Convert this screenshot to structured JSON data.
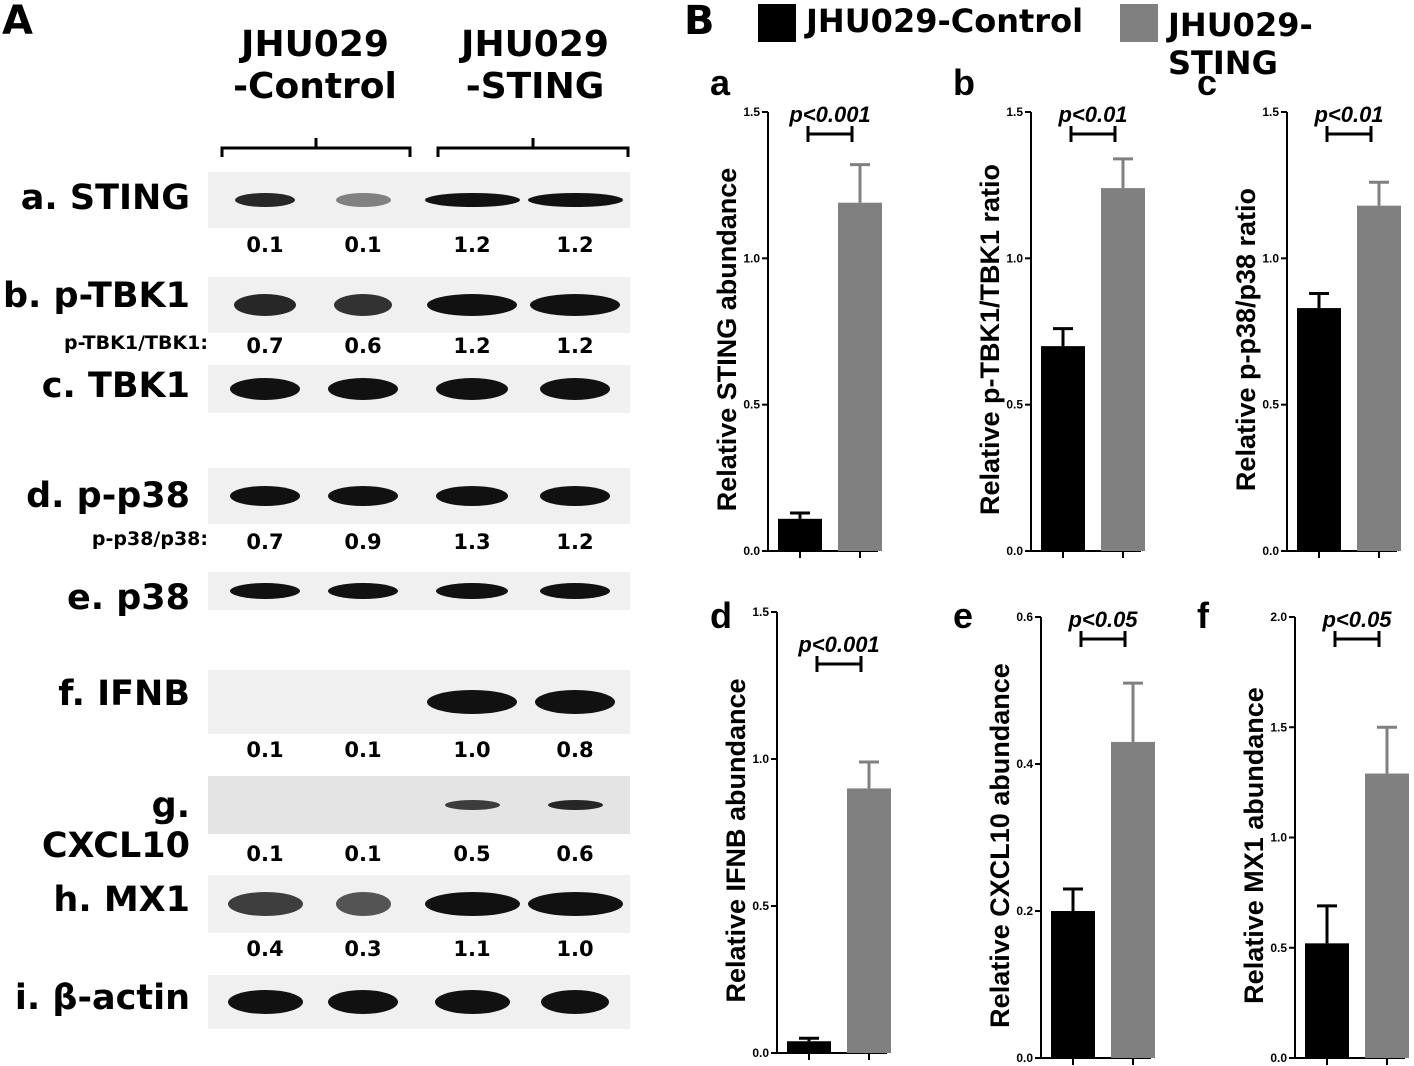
{
  "panelA": {
    "letter": "A",
    "groups": [
      "JHU029\n-Control",
      "JHU029\n-STING"
    ],
    "rows": [
      {
        "label": "a. STING",
        "values": [
          "0.1",
          "0.1",
          "1.2",
          "1.2"
        ],
        "ratio_label": ""
      },
      {
        "label": "b. p-TBK1",
        "values": [
          "0.7",
          "0.6",
          "1.2",
          "1.2"
        ],
        "ratio_label": "p-TBK1/TBK1:"
      },
      {
        "label": "c. TBK1",
        "values": [],
        "ratio_label": ""
      },
      {
        "label": "d. p-p38",
        "values": [
          "0.7",
          "0.9",
          "1.3",
          "1.2"
        ],
        "ratio_label": "p-p38/p38:"
      },
      {
        "label": "e. p38",
        "values": [],
        "ratio_label": ""
      },
      {
        "label": "f. IFNB",
        "values": [
          "0.1",
          "0.1",
          "1.0",
          "0.8"
        ],
        "ratio_label": ""
      },
      {
        "label": "g. CXCL10",
        "values": [
          "0.1",
          "0.1",
          "0.5",
          "0.6"
        ],
        "ratio_label": ""
      },
      {
        "label": "h. MX1",
        "values": [
          "0.4",
          "0.3",
          "1.1",
          "1.0"
        ],
        "ratio_label": ""
      },
      {
        "label": "i. β-actin",
        "values": [],
        "ratio_label": ""
      }
    ]
  },
  "panelB": {
    "letter": "B",
    "legend": [
      {
        "name": "JHU029-Control",
        "color": "#000000"
      },
      {
        "name": "JHU029-STING",
        "color": "#808080"
      }
    ]
  },
  "chart_data": [
    {
      "type": "bar",
      "sub": "a",
      "ylabel": "Relative STING abundance",
      "ylim": [
        0,
        1.5
      ],
      "ticks": [
        "0.0",
        "0.5",
        "1.0",
        "1.5"
      ],
      "values": [
        0.11,
        1.19
      ],
      "errors": [
        0.02,
        0.13
      ],
      "sig": "p<0.001"
    },
    {
      "type": "bar",
      "sub": "b",
      "ylabel": "Relative p-TBK1/TBK1 ratio",
      "ylim": [
        0,
        1.5
      ],
      "ticks": [
        "0.0",
        "0.5",
        "1.0",
        "1.5"
      ],
      "values": [
        0.7,
        1.24
      ],
      "errors": [
        0.06,
        0.1
      ],
      "sig": "p<0.01"
    },
    {
      "type": "bar",
      "sub": "c",
      "ylabel": "Relative p-p38/p38 ratio",
      "ylim": [
        0,
        1.5
      ],
      "ticks": [
        "0.0",
        "0.5",
        "1.0",
        "1.5"
      ],
      "values": [
        0.83,
        1.18
      ],
      "errors": [
        0.05,
        0.08
      ],
      "sig": "p<0.01"
    },
    {
      "type": "bar",
      "sub": "d",
      "ylabel": "Relative IFNB abundance",
      "ylim": [
        0,
        1.5
      ],
      "ticks": [
        "0.0",
        "0.5",
        "1.0",
        "1.5"
      ],
      "values": [
        0.04,
        0.9
      ],
      "errors": [
        0.01,
        0.09
      ],
      "sig": "p<0.001"
    },
    {
      "type": "bar",
      "sub": "e",
      "ylabel": "Relative CXCL10 abundance",
      "ylim": [
        0,
        0.6
      ],
      "ticks": [
        "0.0",
        "0.2",
        "0.4",
        "0.6"
      ],
      "values": [
        0.2,
        0.43
      ],
      "errors": [
        0.03,
        0.08
      ],
      "sig": "p<0.05"
    },
    {
      "type": "bar",
      "sub": "f",
      "ylabel": "Relative MX1 abundance",
      "ylim": [
        0,
        2.0
      ],
      "ticks": [
        "0.0",
        "0.5",
        "1.0",
        "1.5",
        "2.0"
      ],
      "values": [
        0.52,
        1.29
      ],
      "errors": [
        0.17,
        0.21
      ],
      "sig": "p<0.05"
    }
  ]
}
